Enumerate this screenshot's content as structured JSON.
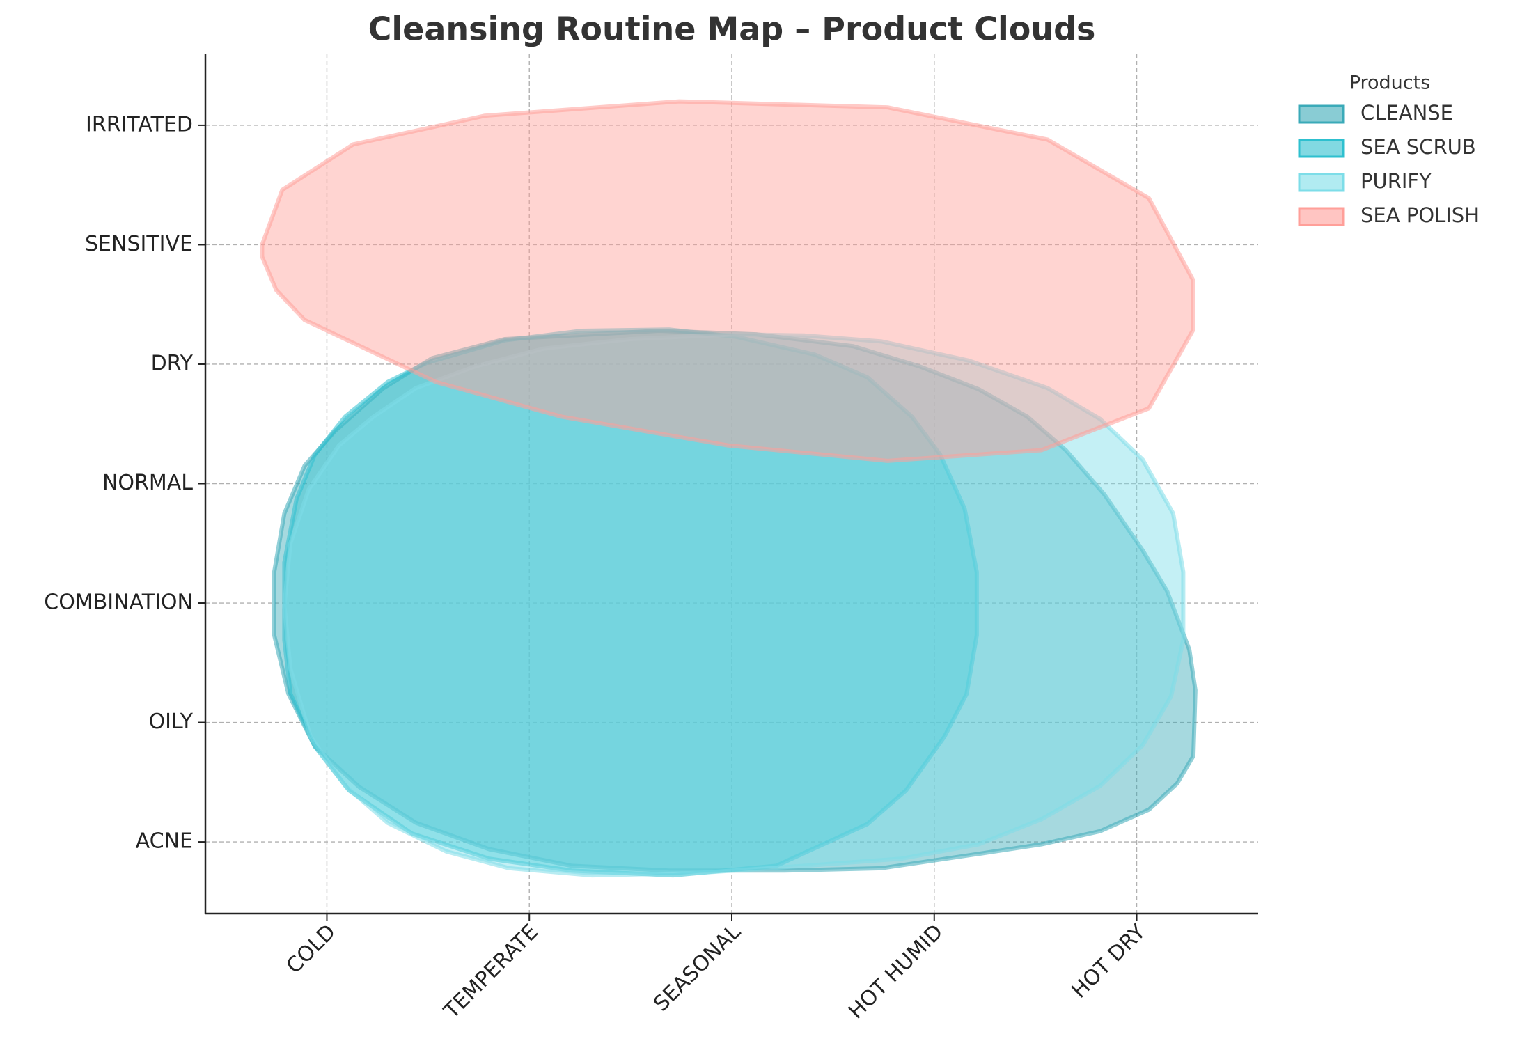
{
  "chart_data": {
    "type": "area",
    "title": "Cleansing Routine Map – Product Clouds",
    "xlim": [
      -0.6,
      4.6
    ],
    "ylim": [
      -0.6,
      6.6
    ],
    "xticks": [
      {
        "value": 0,
        "label": "COLD"
      },
      {
        "value": 1,
        "label": "TEMPERATE"
      },
      {
        "value": 2,
        "label": "SEASONAL"
      },
      {
        "value": 3,
        "label": "HOT HUMID"
      },
      {
        "value": 4,
        "label": "HOT DRY"
      }
    ],
    "yticks": [
      {
        "value": 0,
        "label": "ACNE"
      },
      {
        "value": 1,
        "label": "OILY"
      },
      {
        "value": 2,
        "label": "COMBINATION"
      },
      {
        "value": 3,
        "label": "NORMAL"
      },
      {
        "value": 4,
        "label": "DRY"
      },
      {
        "value": 5,
        "label": "SENSITIVE"
      },
      {
        "value": 6,
        "label": "IRRITATED"
      }
    ],
    "grid": true,
    "legend_title": "Products",
    "legend_position": "outside-upper-right",
    "series": [
      {
        "name": "CLEANSE",
        "color": "#3aaab8",
        "x": [
          1.64,
          0.88,
          0.52,
          0.28,
          0.04,
          -0.11,
          -0.21,
          -0.26,
          -0.26,
          -0.19,
          -0.06,
          0.16,
          0.44,
          0.8,
          1.21,
          1.69,
          2.26,
          2.74,
          3.22,
          3.53,
          3.82,
          4.06,
          4.2,
          4.28,
          4.29,
          4.26,
          4.15,
          4.03,
          3.84,
          3.65,
          3.46,
          3.22,
          2.93,
          2.6,
          2.12
        ],
        "values": [
          4.28,
          4.21,
          4.05,
          3.8,
          3.44,
          3.15,
          2.75,
          2.26,
          1.73,
          1.24,
          0.8,
          0.46,
          0.16,
          -0.06,
          -0.2,
          -0.24,
          -0.24,
          -0.22,
          -0.1,
          -0.02,
          0.09,
          0.27,
          0.49,
          0.72,
          1.27,
          1.61,
          2.1,
          2.44,
          2.91,
          3.28,
          3.56,
          3.79,
          3.98,
          4.15,
          4.25
        ]
      },
      {
        "name": "SEA SCRUB",
        "color": "#2ec0cf",
        "x": [
          1.69,
          1.26,
          0.88,
          0.49,
          0.3,
          0.09,
          -0.06,
          -0.15,
          -0.21,
          -0.21,
          -0.18,
          -0.06,
          0.11,
          0.42,
          0.8,
          1.21,
          1.71,
          2.22,
          2.67,
          2.86,
          3.05,
          3.16,
          3.21,
          3.21,
          3.15,
          3.03,
          2.89,
          2.67,
          2.41,
          2.02
        ],
        "values": [
          4.29,
          4.28,
          4.2,
          4.01,
          3.85,
          3.56,
          3.24,
          2.87,
          2.34,
          1.69,
          1.24,
          0.8,
          0.43,
          0.07,
          -0.14,
          -0.24,
          -0.28,
          -0.2,
          0.15,
          0.43,
          0.88,
          1.24,
          1.73,
          2.26,
          2.79,
          3.24,
          3.56,
          3.89,
          4.08,
          4.23
        ]
      },
      {
        "name": "PURIFY",
        "color": "#7ddde8",
        "x": [
          2.02,
          1.5,
          1.07,
          0.73,
          0.44,
          0.23,
          0.06,
          -0.09,
          -0.18,
          -0.21,
          -0.18,
          -0.08,
          0.09,
          0.3,
          0.59,
          0.9,
          1.31,
          1.83,
          2.36,
          2.84,
          3.22,
          3.53,
          3.82,
          4.03,
          4.17,
          4.23,
          4.23,
          4.18,
          4.03,
          3.82,
          3.56,
          3.17,
          2.74,
          2.36
        ],
        "values": [
          4.25,
          4.21,
          4.13,
          3.98,
          3.8,
          3.56,
          3.32,
          2.95,
          2.5,
          1.98,
          1.45,
          0.88,
          0.47,
          0.16,
          -0.08,
          -0.22,
          -0.28,
          -0.26,
          -0.2,
          -0.14,
          -0.02,
          0.19,
          0.47,
          0.81,
          1.22,
          1.69,
          2.26,
          2.75,
          3.2,
          3.54,
          3.8,
          4.03,
          4.19,
          4.24
        ]
      },
      {
        "name": "SEA POLISH",
        "color": "#ff9f99",
        "x": [
          -0.32,
          -0.32,
          -0.22,
          0.13,
          0.78,
          1.74,
          2.77,
          3.56,
          4.06,
          4.28,
          4.28,
          4.06,
          3.53,
          2.77,
          1.98,
          1.16,
          0.54,
          -0.11,
          -0.25
        ],
        "values": [
          4.9,
          5.0,
          5.46,
          5.84,
          6.08,
          6.2,
          6.15,
          5.88,
          5.39,
          4.7,
          4.29,
          3.63,
          3.28,
          3.19,
          3.32,
          3.56,
          3.85,
          4.37,
          4.62
        ]
      }
    ]
  }
}
